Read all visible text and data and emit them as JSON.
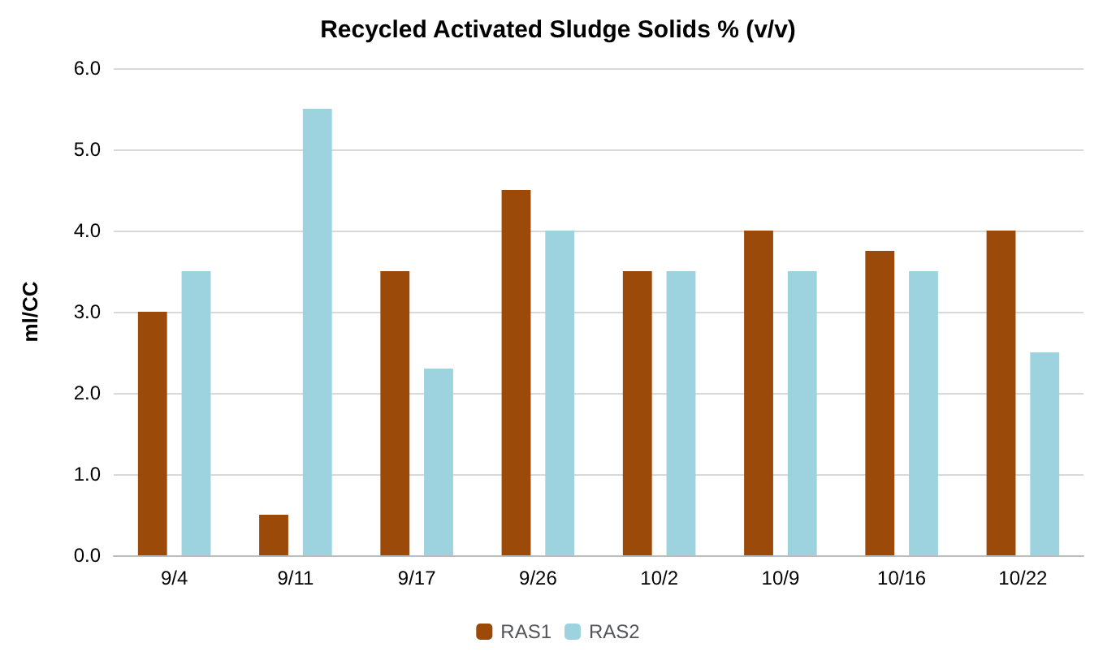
{
  "chart_data": {
    "type": "bar",
    "title": "Recycled Activated Sludge Solids % (v/v)",
    "ylabel": "ml/CC",
    "categories": [
      "9/4",
      "9/11",
      "9/17",
      "9/26",
      "10/2",
      "10/9",
      "10/16",
      "10/22"
    ],
    "series": [
      {
        "name": "RAS1",
        "color": "#9c4a0a",
        "values": [
          3.0,
          0.5,
          3.5,
          4.5,
          3.5,
          4.0,
          3.75,
          4.0
        ]
      },
      {
        "name": "RAS2",
        "color": "#9dd3df",
        "values": [
          3.5,
          5.5,
          2.3,
          4.0,
          3.5,
          3.5,
          3.5,
          2.5
        ]
      }
    ],
    "ylim": [
      0,
      6
    ],
    "yticks": [
      {
        "value": 0,
        "label": "0.0"
      },
      {
        "value": 1,
        "label": "1.0"
      },
      {
        "value": 2,
        "label": "2.0"
      },
      {
        "value": 3,
        "label": "3.0"
      },
      {
        "value": 4,
        "label": "4.0"
      },
      {
        "value": 5,
        "label": "5.0"
      },
      {
        "value": 6,
        "label": "6.0"
      }
    ],
    "grid": "y",
    "legend": "bottom"
  }
}
